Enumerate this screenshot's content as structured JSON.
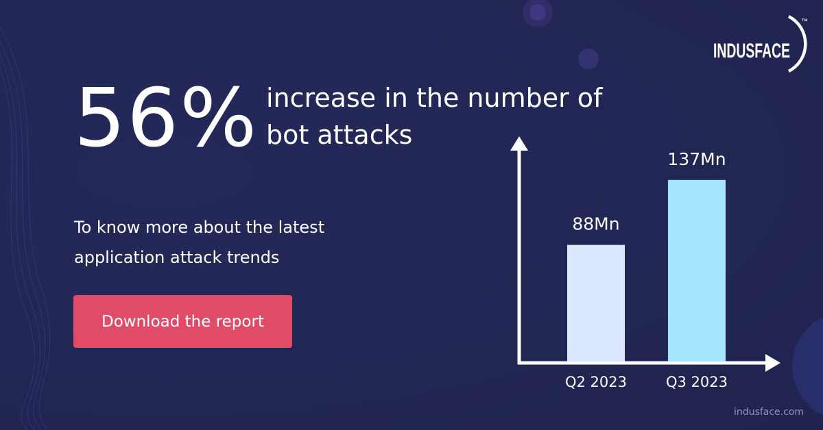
{
  "headline": {
    "percent": "56%",
    "description": "increase in the number of bot attacks"
  },
  "subtext": "To know more about the latest application attack trends",
  "cta": {
    "label": "Download the report"
  },
  "brand": {
    "name": "INDUSFACE",
    "trademark": "™",
    "url": "indusface.com"
  },
  "colors": {
    "background": "#222653",
    "cta": "#e04b68",
    "bar_q2": "#dce8fd",
    "bar_q3": "#a6e3fd"
  },
  "chart_data": {
    "type": "bar",
    "categories": [
      "Q2 2023",
      "Q3 2023"
    ],
    "values": [
      88,
      137
    ],
    "data_labels": [
      "88Mn",
      "137Mn"
    ],
    "unit": "Mn",
    "ylim": [
      0,
      155
    ],
    "grid": false,
    "legend": "none",
    "colors": [
      "#dce8fd",
      "#a6e3fd"
    ]
  }
}
